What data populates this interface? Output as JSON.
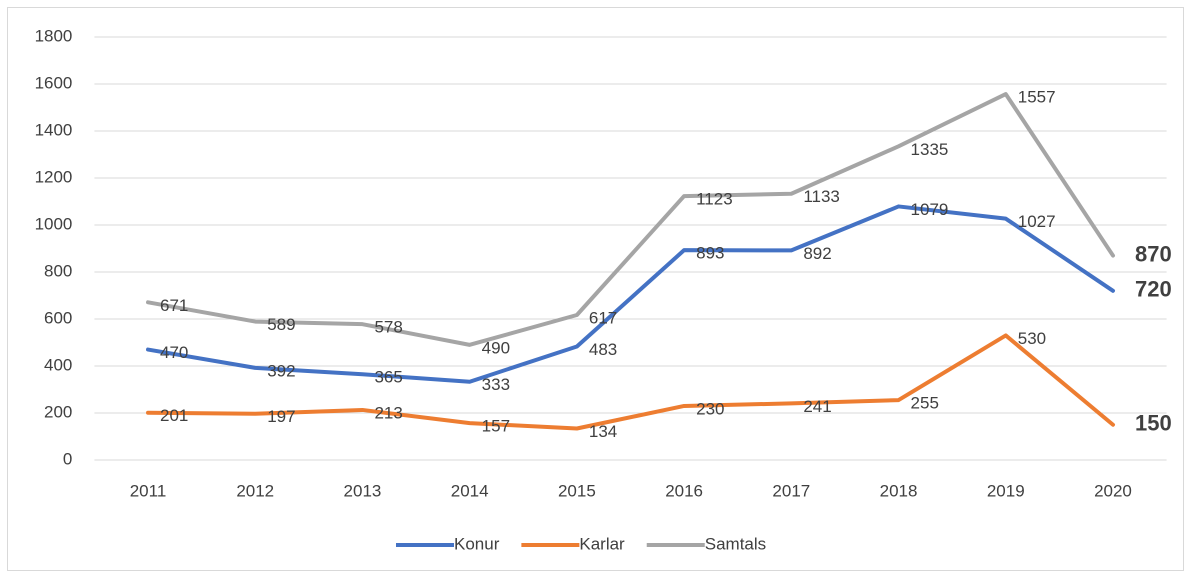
{
  "chart_data": {
    "type": "line",
    "categories": [
      "2011",
      "2012",
      "2013",
      "2014",
      "2015",
      "2016",
      "2017",
      "2018",
      "2019",
      "2020"
    ],
    "series": [
      {
        "name": "Konur",
        "color": "#4472c4",
        "values": [
          470,
          392,
          365,
          333,
          483,
          893,
          892,
          1079,
          1027,
          720
        ]
      },
      {
        "name": "Karlar",
        "color": "#ed7d31",
        "values": [
          201,
          197,
          213,
          157,
          134,
          230,
          241,
          255,
          530,
          150
        ]
      },
      {
        "name": "Samtals",
        "color": "#a5a5a5",
        "values": [
          671,
          589,
          578,
          490,
          617,
          1123,
          1133,
          1335,
          1557,
          870
        ]
      }
    ],
    "ylim": [
      0,
      1800
    ],
    "yticks": [
      0,
      200,
      400,
      600,
      800,
      1000,
      1200,
      1400,
      1600,
      1800
    ],
    "grid": true,
    "legend": "bottom"
  }
}
